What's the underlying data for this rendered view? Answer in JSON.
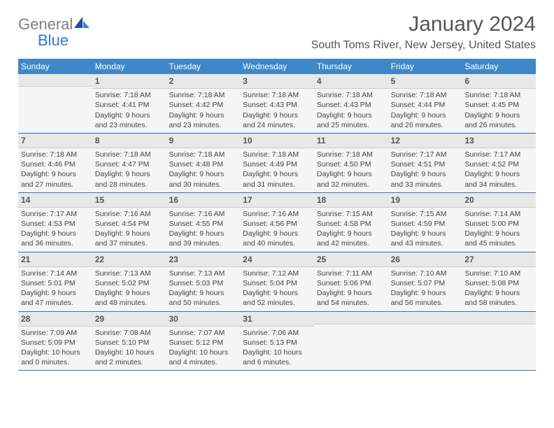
{
  "logo": {
    "text1": "General",
    "text2": "Blue"
  },
  "title": "January 2024",
  "location": "South Toms River, New Jersey, United States",
  "colors": {
    "header_bg": "#3f88c5",
    "header_text": "#ffffff",
    "daynum_bg": "#e8e8e8",
    "cell_bg": "#f5f5f5",
    "week_border": "#3f6fa5",
    "logo_gray": "#808080",
    "logo_blue": "#2e7cd1"
  },
  "day_names": [
    "Sunday",
    "Monday",
    "Tuesday",
    "Wednesday",
    "Thursday",
    "Friday",
    "Saturday"
  ],
  "weeks": [
    [
      {
        "num": "",
        "body": ""
      },
      {
        "num": "1",
        "body": "Sunrise: 7:18 AM\nSunset: 4:41 PM\nDaylight: 9 hours and 23 minutes."
      },
      {
        "num": "2",
        "body": "Sunrise: 7:18 AM\nSunset: 4:42 PM\nDaylight: 9 hours and 23 minutes."
      },
      {
        "num": "3",
        "body": "Sunrise: 7:18 AM\nSunset: 4:43 PM\nDaylight: 9 hours and 24 minutes."
      },
      {
        "num": "4",
        "body": "Sunrise: 7:18 AM\nSunset: 4:43 PM\nDaylight: 9 hours and 25 minutes."
      },
      {
        "num": "5",
        "body": "Sunrise: 7:18 AM\nSunset: 4:44 PM\nDaylight: 9 hours and 26 minutes."
      },
      {
        "num": "6",
        "body": "Sunrise: 7:18 AM\nSunset: 4:45 PM\nDaylight: 9 hours and 26 minutes."
      }
    ],
    [
      {
        "num": "7",
        "body": "Sunrise: 7:18 AM\nSunset: 4:46 PM\nDaylight: 9 hours and 27 minutes."
      },
      {
        "num": "8",
        "body": "Sunrise: 7:18 AM\nSunset: 4:47 PM\nDaylight: 9 hours and 28 minutes."
      },
      {
        "num": "9",
        "body": "Sunrise: 7:18 AM\nSunset: 4:48 PM\nDaylight: 9 hours and 30 minutes."
      },
      {
        "num": "10",
        "body": "Sunrise: 7:18 AM\nSunset: 4:49 PM\nDaylight: 9 hours and 31 minutes."
      },
      {
        "num": "11",
        "body": "Sunrise: 7:18 AM\nSunset: 4:50 PM\nDaylight: 9 hours and 32 minutes."
      },
      {
        "num": "12",
        "body": "Sunrise: 7:17 AM\nSunset: 4:51 PM\nDaylight: 9 hours and 33 minutes."
      },
      {
        "num": "13",
        "body": "Sunrise: 7:17 AM\nSunset: 4:52 PM\nDaylight: 9 hours and 34 minutes."
      }
    ],
    [
      {
        "num": "14",
        "body": "Sunrise: 7:17 AM\nSunset: 4:53 PM\nDaylight: 9 hours and 36 minutes."
      },
      {
        "num": "15",
        "body": "Sunrise: 7:16 AM\nSunset: 4:54 PM\nDaylight: 9 hours and 37 minutes."
      },
      {
        "num": "16",
        "body": "Sunrise: 7:16 AM\nSunset: 4:55 PM\nDaylight: 9 hours and 39 minutes."
      },
      {
        "num": "17",
        "body": "Sunrise: 7:16 AM\nSunset: 4:56 PM\nDaylight: 9 hours and 40 minutes."
      },
      {
        "num": "18",
        "body": "Sunrise: 7:15 AM\nSunset: 4:58 PM\nDaylight: 9 hours and 42 minutes."
      },
      {
        "num": "19",
        "body": "Sunrise: 7:15 AM\nSunset: 4:59 PM\nDaylight: 9 hours and 43 minutes."
      },
      {
        "num": "20",
        "body": "Sunrise: 7:14 AM\nSunset: 5:00 PM\nDaylight: 9 hours and 45 minutes."
      }
    ],
    [
      {
        "num": "21",
        "body": "Sunrise: 7:14 AM\nSunset: 5:01 PM\nDaylight: 9 hours and 47 minutes."
      },
      {
        "num": "22",
        "body": "Sunrise: 7:13 AM\nSunset: 5:02 PM\nDaylight: 9 hours and 48 minutes."
      },
      {
        "num": "23",
        "body": "Sunrise: 7:13 AM\nSunset: 5:03 PM\nDaylight: 9 hours and 50 minutes."
      },
      {
        "num": "24",
        "body": "Sunrise: 7:12 AM\nSunset: 5:04 PM\nDaylight: 9 hours and 52 minutes."
      },
      {
        "num": "25",
        "body": "Sunrise: 7:11 AM\nSunset: 5:06 PM\nDaylight: 9 hours and 54 minutes."
      },
      {
        "num": "26",
        "body": "Sunrise: 7:10 AM\nSunset: 5:07 PM\nDaylight: 9 hours and 56 minutes."
      },
      {
        "num": "27",
        "body": "Sunrise: 7:10 AM\nSunset: 5:08 PM\nDaylight: 9 hours and 58 minutes."
      }
    ],
    [
      {
        "num": "28",
        "body": "Sunrise: 7:09 AM\nSunset: 5:09 PM\nDaylight: 10 hours and 0 minutes."
      },
      {
        "num": "29",
        "body": "Sunrise: 7:08 AM\nSunset: 5:10 PM\nDaylight: 10 hours and 2 minutes."
      },
      {
        "num": "30",
        "body": "Sunrise: 7:07 AM\nSunset: 5:12 PM\nDaylight: 10 hours and 4 minutes."
      },
      {
        "num": "31",
        "body": "Sunrise: 7:06 AM\nSunset: 5:13 PM\nDaylight: 10 hours and 6 minutes."
      },
      {
        "num": "",
        "body": ""
      },
      {
        "num": "",
        "body": ""
      },
      {
        "num": "",
        "body": ""
      }
    ]
  ]
}
